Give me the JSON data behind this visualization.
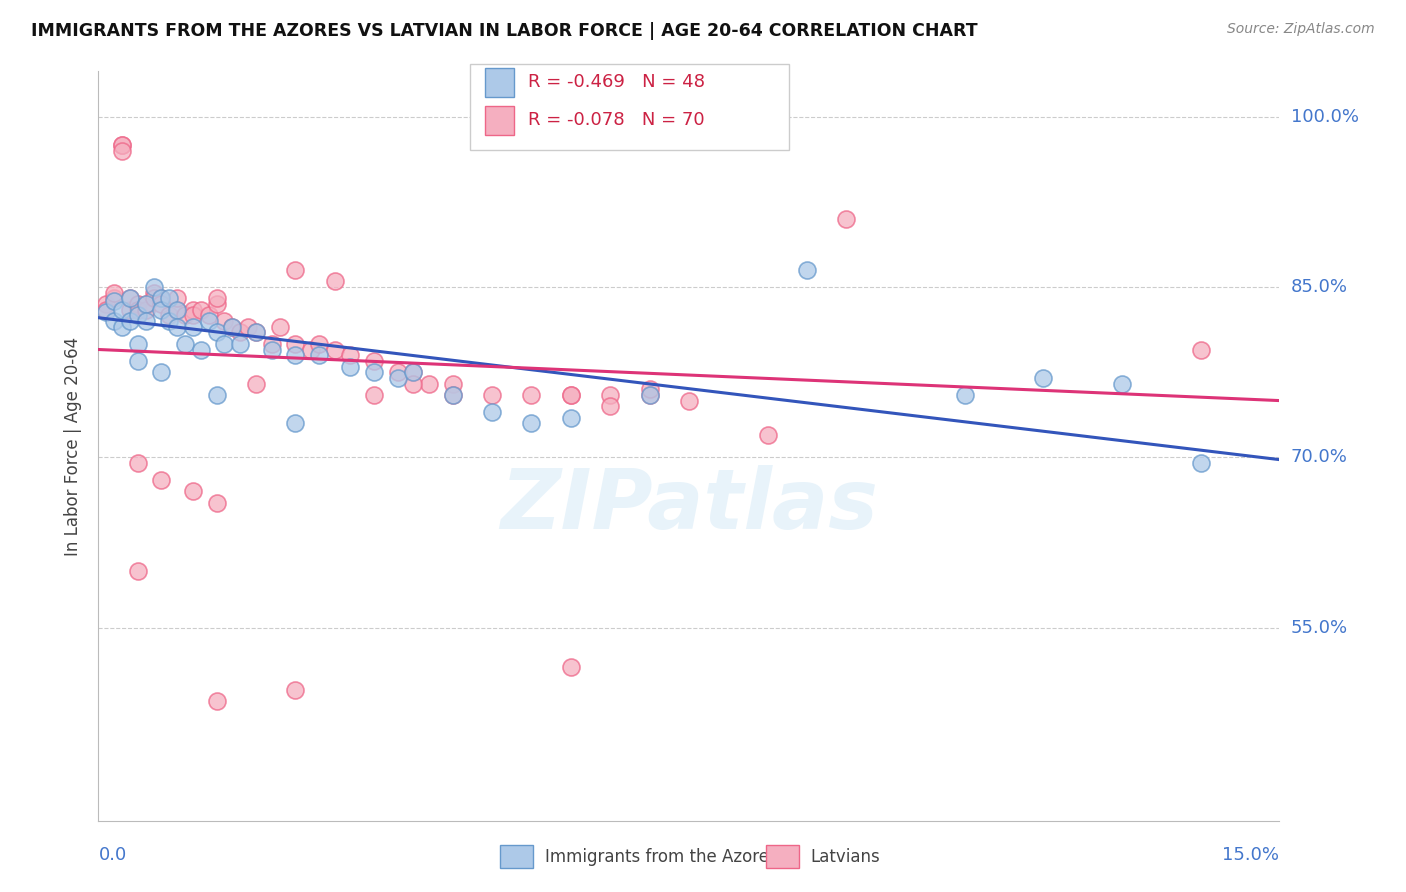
{
  "title": "IMMIGRANTS FROM THE AZORES VS LATVIAN IN LABOR FORCE | AGE 20-64 CORRELATION CHART",
  "source": "Source: ZipAtlas.com",
  "ylabel": "In Labor Force | Age 20-64",
  "ytick_labels": [
    "100.0%",
    "85.0%",
    "70.0%",
    "55.0%"
  ],
  "ytick_values": [
    1.0,
    0.85,
    0.7,
    0.55
  ],
  "xlim": [
    0.0,
    0.15
  ],
  "ylim": [
    0.38,
    1.04
  ],
  "azores_color": "#adc9e8",
  "latvian_color": "#f5afc0",
  "azores_edge_color": "#6699cc",
  "latvian_edge_color": "#ee6688",
  "azores_line_color": "#3355bb",
  "latvian_line_color": "#dd3377",
  "legend_r_azores": "R = -0.469",
  "legend_n_azores": "N = 48",
  "legend_r_latvian": "R = -0.078",
  "legend_n_latvian": "N = 70",
  "watermark": "ZIPatlas",
  "azores_trend_x0": 0.0,
  "azores_trend_y0": 0.823,
  "azores_trend_x1": 0.15,
  "azores_trend_y1": 0.698,
  "latvian_trend_x0": 0.0,
  "latvian_trend_y0": 0.795,
  "latvian_trend_x1": 0.15,
  "latvian_trend_y1": 0.75,
  "azores_x": [
    0.001,
    0.002,
    0.002,
    0.003,
    0.003,
    0.004,
    0.004,
    0.005,
    0.005,
    0.006,
    0.006,
    0.007,
    0.008,
    0.008,
    0.009,
    0.009,
    0.01,
    0.01,
    0.011,
    0.012,
    0.013,
    0.014,
    0.015,
    0.016,
    0.017,
    0.018,
    0.02,
    0.022,
    0.025,
    0.028,
    0.032,
    0.035,
    0.038,
    0.04,
    0.045,
    0.05,
    0.055,
    0.06,
    0.07,
    0.09,
    0.11,
    0.12,
    0.13,
    0.14,
    0.005,
    0.008,
    0.015,
    0.025
  ],
  "azores_y": [
    0.828,
    0.838,
    0.82,
    0.815,
    0.83,
    0.82,
    0.84,
    0.825,
    0.8,
    0.835,
    0.82,
    0.85,
    0.84,
    0.83,
    0.82,
    0.84,
    0.83,
    0.815,
    0.8,
    0.815,
    0.795,
    0.82,
    0.81,
    0.8,
    0.815,
    0.8,
    0.81,
    0.795,
    0.79,
    0.79,
    0.78,
    0.775,
    0.77,
    0.775,
    0.755,
    0.74,
    0.73,
    0.735,
    0.755,
    0.865,
    0.755,
    0.77,
    0.765,
    0.695,
    0.785,
    0.775,
    0.755,
    0.73
  ],
  "latvian_x": [
    0.001,
    0.001,
    0.002,
    0.002,
    0.003,
    0.003,
    0.003,
    0.004,
    0.004,
    0.005,
    0.005,
    0.006,
    0.006,
    0.007,
    0.007,
    0.008,
    0.008,
    0.009,
    0.01,
    0.01,
    0.011,
    0.012,
    0.012,
    0.013,
    0.014,
    0.015,
    0.015,
    0.016,
    0.017,
    0.018,
    0.019,
    0.02,
    0.022,
    0.023,
    0.025,
    0.027,
    0.028,
    0.03,
    0.032,
    0.035,
    0.038,
    0.04,
    0.042,
    0.045,
    0.05,
    0.055,
    0.06,
    0.065,
    0.07,
    0.075,
    0.005,
    0.008,
    0.012,
    0.015,
    0.02,
    0.025,
    0.03,
    0.035,
    0.04,
    0.045,
    0.06,
    0.065,
    0.07,
    0.085,
    0.095,
    0.005,
    0.015,
    0.025,
    0.06,
    0.14
  ],
  "latvian_y": [
    0.835,
    0.83,
    0.84,
    0.845,
    0.975,
    0.975,
    0.97,
    0.83,
    0.84,
    0.835,
    0.83,
    0.83,
    0.835,
    0.845,
    0.84,
    0.84,
    0.835,
    0.825,
    0.83,
    0.84,
    0.825,
    0.83,
    0.825,
    0.83,
    0.825,
    0.835,
    0.84,
    0.82,
    0.815,
    0.81,
    0.815,
    0.81,
    0.8,
    0.815,
    0.8,
    0.795,
    0.8,
    0.795,
    0.79,
    0.785,
    0.775,
    0.775,
    0.765,
    0.765,
    0.755,
    0.755,
    0.755,
    0.755,
    0.755,
    0.75,
    0.695,
    0.68,
    0.67,
    0.66,
    0.765,
    0.865,
    0.855,
    0.755,
    0.765,
    0.755,
    0.755,
    0.745,
    0.76,
    0.72,
    0.91,
    0.6,
    0.485,
    0.495,
    0.515,
    0.795
  ]
}
